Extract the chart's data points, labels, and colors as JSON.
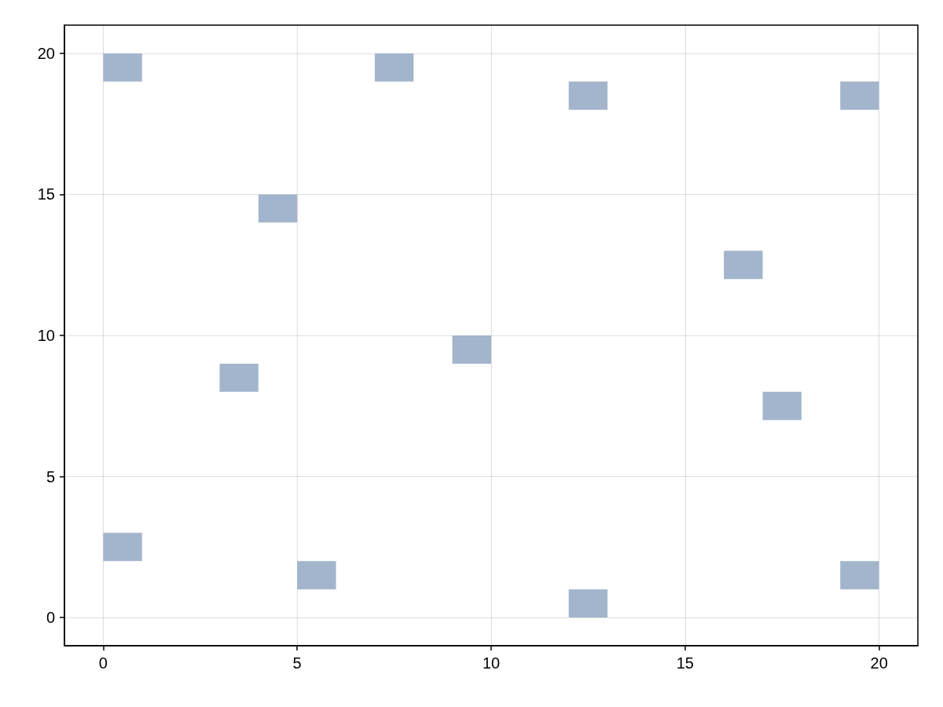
{
  "chart_data": {
    "type": "bar",
    "series": [
      {
        "color": "#a2b5cc",
        "x": [
          0.5,
          3.5,
          4.5,
          7.5,
          9.5,
          12.5,
          16.5,
          17.5,
          19.5
        ],
        "base": [
          19,
          8,
          14,
          19,
          9,
          18,
          12,
          7,
          18
        ],
        "values": [
          1,
          1,
          1,
          1,
          1,
          1,
          1,
          1,
          1
        ]
      },
      {
        "color": "#a2b5cc",
        "x": [
          0.5,
          5.5,
          12.5,
          19.5
        ],
        "base": [
          2,
          1,
          0,
          1
        ],
        "values": [
          1,
          1,
          1,
          1
        ]
      }
    ],
    "xlim": [
      -1,
      21
    ],
    "xticks": [
      0,
      5,
      10,
      15,
      20
    ],
    "ylim": [
      -1,
      21
    ],
    "yticks": [
      0,
      5,
      10,
      15,
      20
    ],
    "grid": true
  }
}
